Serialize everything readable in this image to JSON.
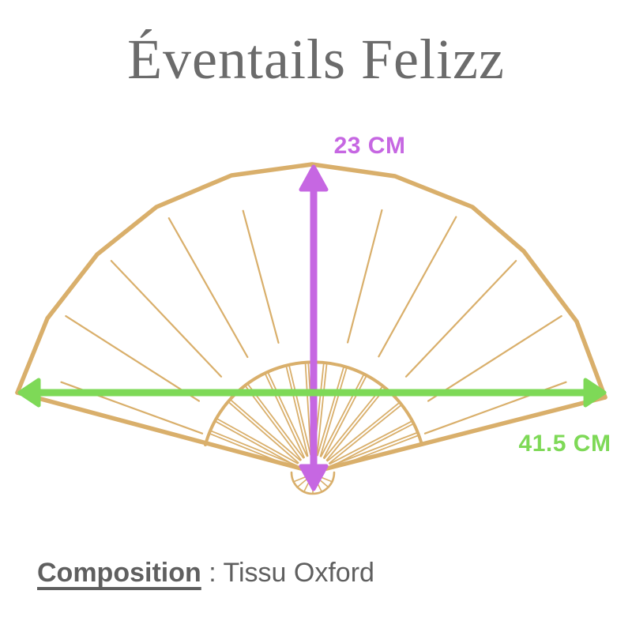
{
  "title": "Éventails Felizz",
  "colors": {
    "fan_outline": "#d9af6b",
    "arrow_purple": "#c667e2",
    "arrow_green": "#7ed957",
    "title_text": "#6b6b6b",
    "body_text": "#5f5f5f"
  },
  "diagram": {
    "height_label": "23 CM",
    "width_label": "41.5 CM"
  },
  "composition": {
    "label": "Composition",
    "separator": " : ",
    "value": "Tissu Oxford"
  }
}
